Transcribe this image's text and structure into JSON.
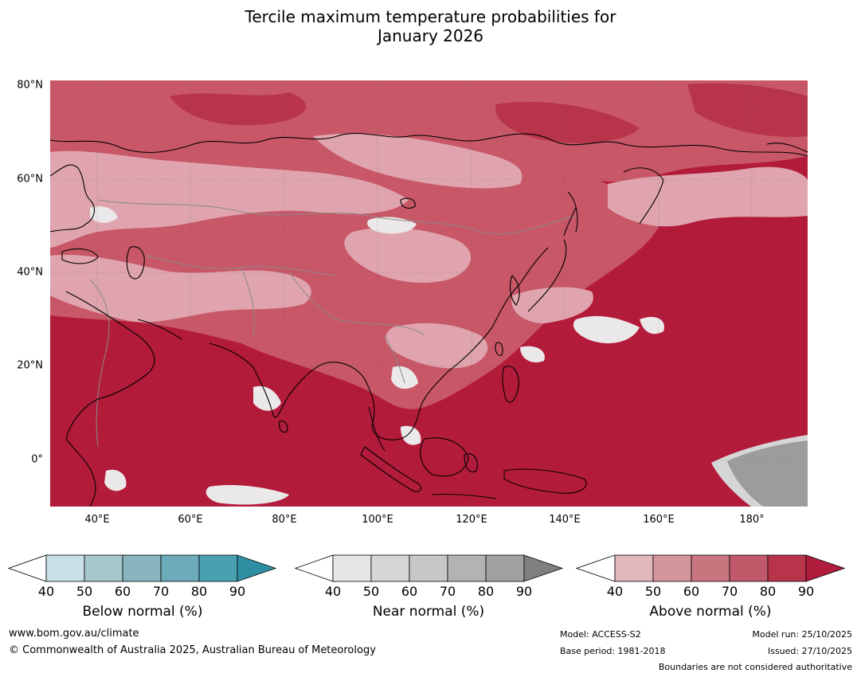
{
  "title": {
    "line1": "Tercile maximum temperature probabilities for",
    "line2": "January 2026"
  },
  "map": {
    "lat_labels": [
      "80°N",
      "60°N",
      "40°N",
      "20°N",
      "0°"
    ],
    "lon_labels": [
      "40°E",
      "60°E",
      "80°E",
      "100°E",
      "120°E",
      "140°E",
      "160°E",
      "180°"
    ],
    "colors": {
      "ocean_dark": "#b31b3a",
      "land_mid": "#c85768",
      "land_light": "#dfa4ad",
      "very_light": "#ebe8e9",
      "grey_region": "#9c9c9c",
      "coastline": "#000000",
      "border": "#8a8a8a"
    }
  },
  "legends": [
    {
      "name": "below",
      "title": "Below normal (%)",
      "ticks": [
        "40",
        "50",
        "60",
        "70",
        "80",
        "90"
      ],
      "colors": [
        "#ffffff",
        "#c8e1e6",
        "#a6c8cd",
        "#89b5bf",
        "#6cabb9",
        "#48a0b1",
        "#2f8fa2"
      ]
    },
    {
      "name": "near",
      "title": "Near normal (%)",
      "ticks": [
        "40",
        "50",
        "60",
        "70",
        "80",
        "90"
      ],
      "colors": [
        "#ffffff",
        "#e6e6e6",
        "#d6d6d6",
        "#c7c7c7",
        "#b3b3b3",
        "#a1a1a1",
        "#7f7f7f"
      ]
    },
    {
      "name": "above",
      "title": "Above normal (%)",
      "ticks": [
        "40",
        "50",
        "60",
        "70",
        "80",
        "90"
      ],
      "colors": [
        "#ffffff",
        "#e0b7bc",
        "#d5959c",
        "#c97580",
        "#c2596a",
        "#b8344b",
        "#b01c3b"
      ]
    }
  ],
  "footer": {
    "website": "www.bom.gov.au/climate",
    "copyright": "© Commonwealth of Australia 2025, Australian Bureau of Meteorology",
    "model": "Model: ACCESS-S2",
    "base_period": "Base period: 1981-2018",
    "model_run": "Model run: 25/10/2025",
    "issued": "Issued: 27/10/2025",
    "disclaimer": "Boundaries are not considered authoritative"
  }
}
